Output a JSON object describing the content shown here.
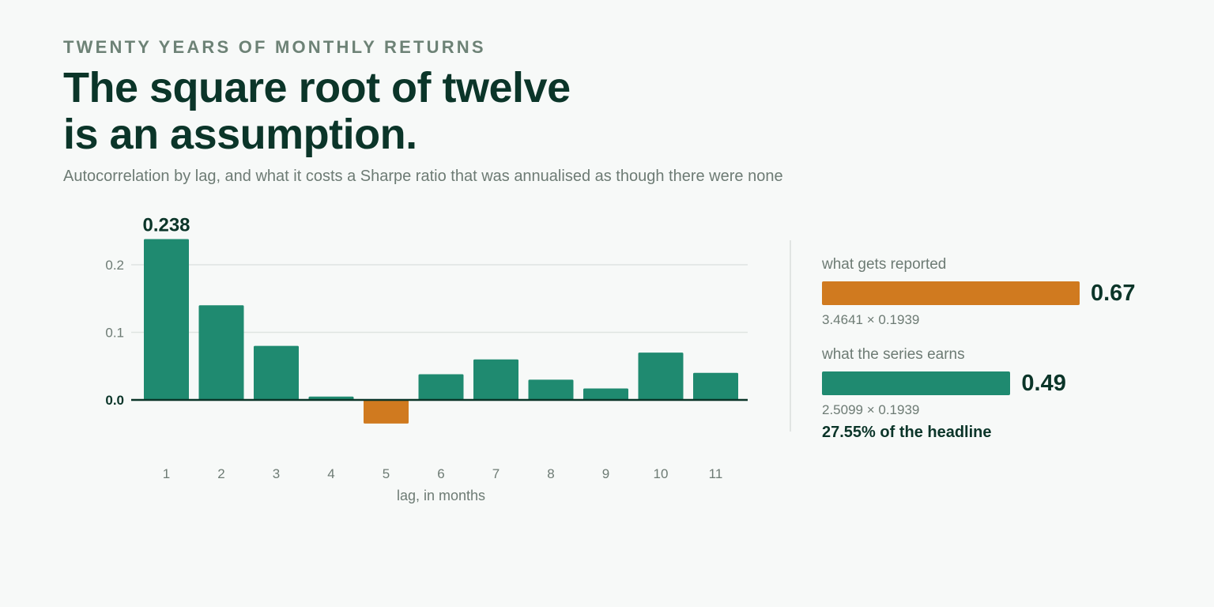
{
  "header": {
    "kicker": "TWENTY YEARS OF MONTHLY RETURNS",
    "headline_line1": "The square root of twelve",
    "headline_line2": "is an assumption.",
    "subtitle": "Autocorrelation by lag, and what it costs a Sharpe ratio that was annualised as though there were none"
  },
  "colors": {
    "positive": "#1f8a70",
    "negative": "#d07a1f",
    "ink": "#0b3529",
    "muted": "#6d7b74",
    "grid": "#dfe4e2"
  },
  "chart_data": {
    "type": "bar",
    "categories": [
      "1",
      "2",
      "3",
      "4",
      "5",
      "6",
      "7",
      "8",
      "9",
      "10",
      "11"
    ],
    "values": [
      0.238,
      0.14,
      0.08,
      0.005,
      -0.035,
      0.038,
      0.06,
      0.03,
      0.017,
      0.07,
      0.04
    ],
    "xlabel": "lag, in months",
    "ylabel": "",
    "ylim": [
      -0.035,
      0.238
    ],
    "yticks": [
      "0.0",
      "0.1",
      "0.2"
    ],
    "highlight_label": "0.238",
    "grid": true
  },
  "panel": {
    "reported": {
      "label": "what gets reported",
      "value": 0.67,
      "value_text": "0.67",
      "formula": "3.4641 × 0.1939",
      "color": "#d07a1f"
    },
    "earned": {
      "label": "what the series earns",
      "value": 0.49,
      "value_text": "0.49",
      "formula": "2.5099 × 0.1939",
      "color": "#1f8a70"
    },
    "note": "27.55% of the headline"
  }
}
